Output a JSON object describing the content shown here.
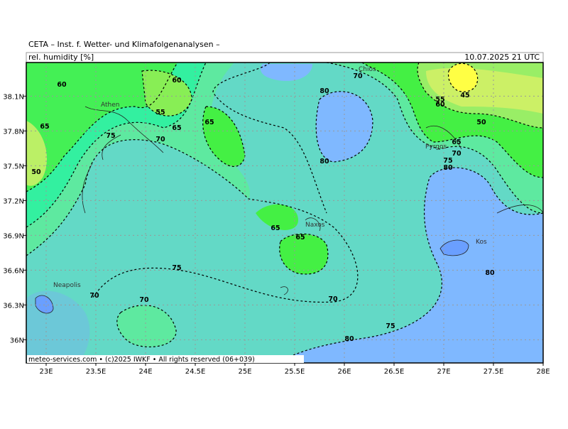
{
  "header": {
    "title": "CETA – Inst. f. Wetter- und Klimafolgenanalysen –",
    "parameter": "rel. humidity [%]",
    "valid_time": "10.07.2025 21 UTC"
  },
  "footer": "meteo-services.com • (c)2025 IWKF • All rights reserved (06+039)",
  "map": {
    "lon_range": [
      22.8,
      28
    ],
    "lat_range": [
      35.8,
      38.39
    ],
    "lon_ticks": [
      {
        "value": 23,
        "label": "23E"
      },
      {
        "value": 23.5,
        "label": "23.5E"
      },
      {
        "value": 24,
        "label": "24E"
      },
      {
        "value": 24.5,
        "label": "24.5E"
      },
      {
        "value": 25,
        "label": "25E"
      },
      {
        "value": 25.5,
        "label": "25.5E"
      },
      {
        "value": 26,
        "label": "26E"
      },
      {
        "value": 26.5,
        "label": "26.5E"
      },
      {
        "value": 27,
        "label": "27E"
      },
      {
        "value": 27.5,
        "label": "27.5E"
      },
      {
        "value": 28,
        "label": "28E"
      }
    ],
    "lat_ticks": [
      {
        "value": 38.1,
        "label": "38.1N"
      },
      {
        "value": 37.8,
        "label": "37.8N"
      },
      {
        "value": 37.5,
        "label": "37.5N"
      },
      {
        "value": 37.2,
        "label": "37.2N"
      },
      {
        "value": 36.9,
        "label": "36.9N"
      },
      {
        "value": 36.6,
        "label": "36.6N"
      },
      {
        "value": 36.3,
        "label": "36.3N"
      },
      {
        "value": 36,
        "label": "36N"
      }
    ],
    "places": [
      "Athen",
      "Chios",
      "Pyrgos",
      "Naxos",
      "Neapolis",
      "Kos"
    ],
    "contour_labels": [
      "60",
      "60",
      "55",
      "65",
      "75",
      "70",
      "65",
      "65",
      "50",
      "80",
      "80",
      "70",
      "45",
      "55",
      "60",
      "50",
      "65",
      "70",
      "75",
      "80",
      "65",
      "65",
      "75",
      "70",
      "70",
      "70",
      "75",
      "80",
      "80"
    ]
  }
}
